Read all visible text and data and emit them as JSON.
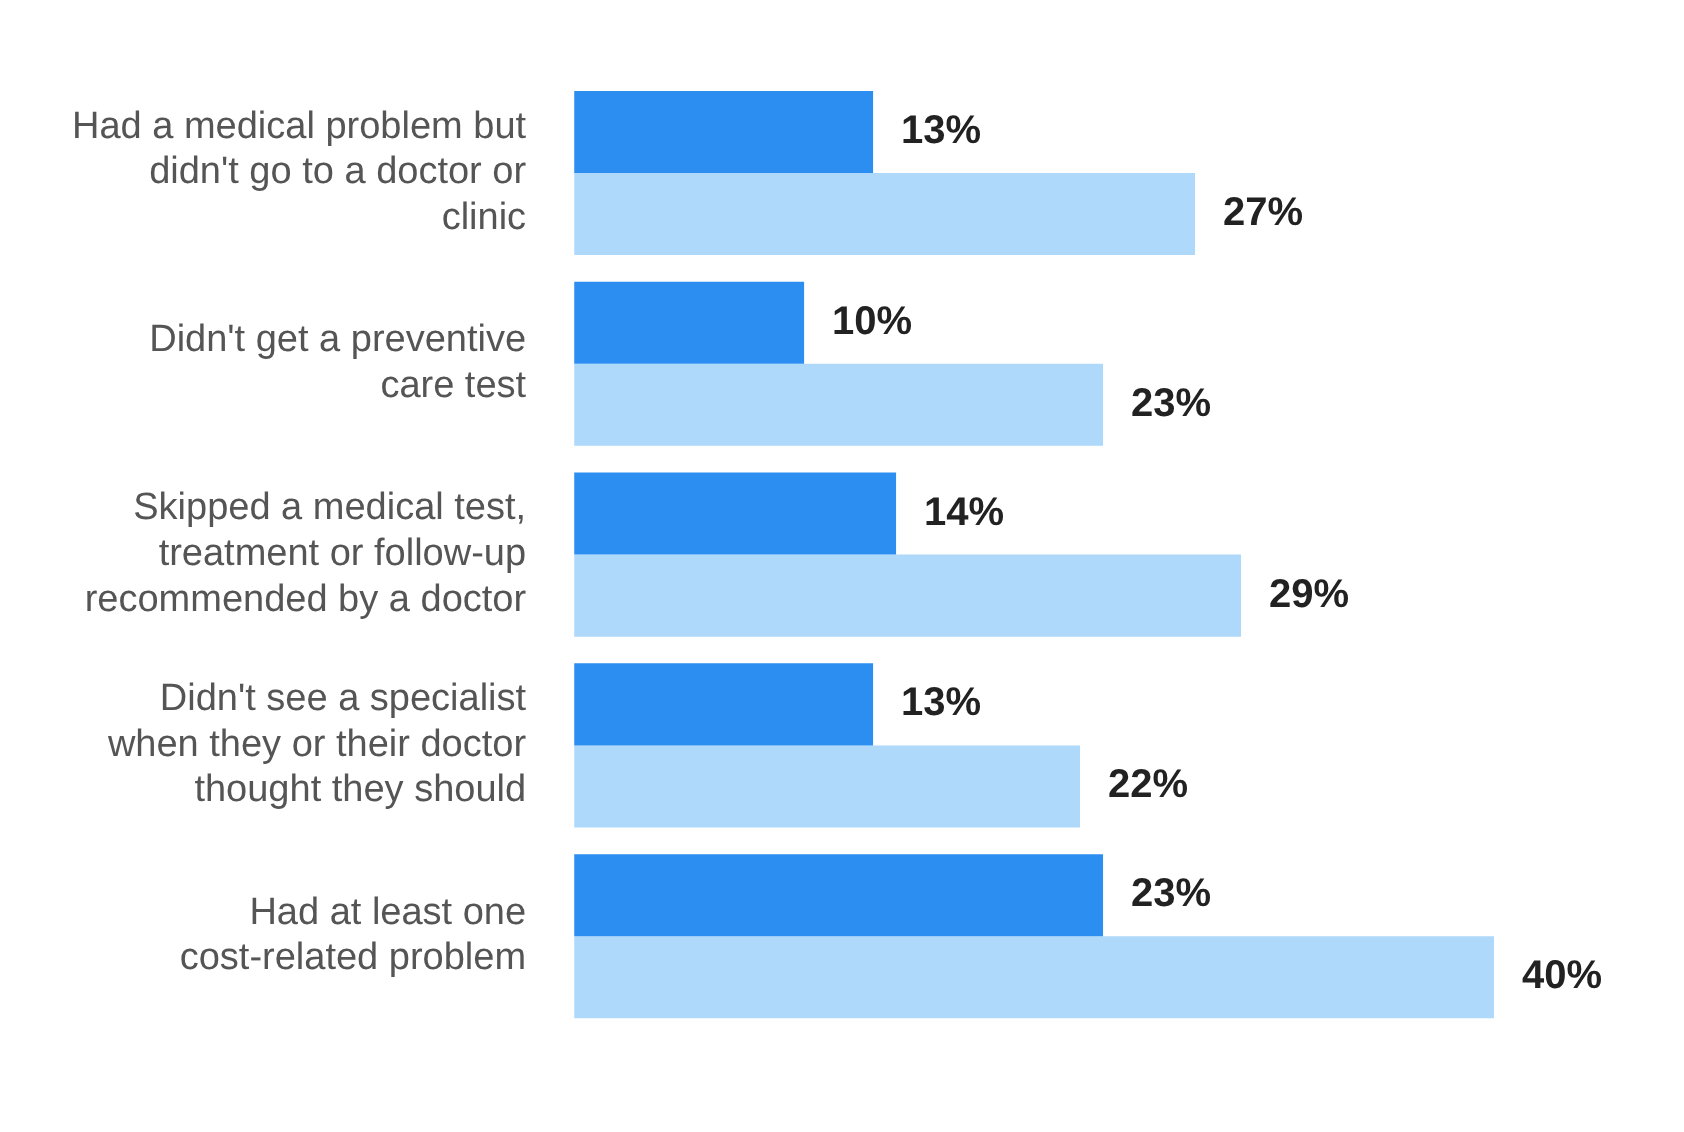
{
  "chart_data": {
    "type": "bar",
    "orientation": "horizontal",
    "categories": [
      "Had a medical problem but didn't go to a doctor or clinic",
      "Didn't get a preventive care test",
      "Skipped a medical test, treatment or follow-up recommended by a doctor",
      "Didn't see a specialist when they or their doctor thought they should",
      "Had at least one cost-related problem"
    ],
    "series": [
      {
        "color": "#2b8ef0",
        "values": [
          13,
          10,
          14,
          13,
          23
        ],
        "value_labels": [
          "13%",
          "10%",
          "14%",
          "13%",
          "23%"
        ]
      },
      {
        "color": "#aed9fb",
        "values": [
          27,
          23,
          29,
          22,
          40
        ],
        "value_labels": [
          "27%",
          "23%",
          "29%",
          "22%",
          "40%"
        ]
      }
    ],
    "legend": false
  }
}
